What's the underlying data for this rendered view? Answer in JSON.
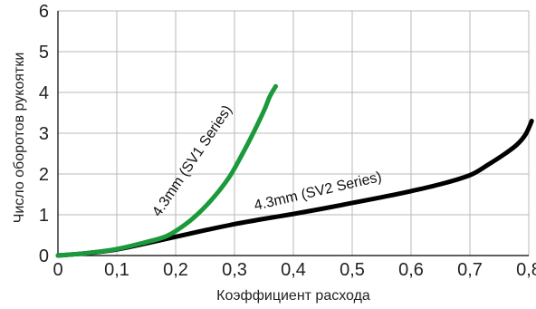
{
  "chart_data": {
    "type": "line",
    "title": "",
    "xlabel": "Коэффициент расхода",
    "ylabel": "Число оборотов рукоятки",
    "xlim": [
      0,
      0.8
    ],
    "ylim": [
      0,
      6
    ],
    "x_ticks": [
      0,
      0.1,
      0.2,
      0.3,
      0.4,
      0.5,
      0.6,
      0.7,
      0.8
    ],
    "x_tick_labels": [
      "0",
      "0,1",
      "0,2",
      "0,3",
      "0,4",
      "0,5",
      "0,6",
      "0,7",
      "0,8"
    ],
    "y_ticks": [
      0,
      1,
      2,
      3,
      4,
      5,
      6
    ],
    "y_tick_labels": [
      "0",
      "1",
      "2",
      "3",
      "4",
      "5",
      "6"
    ],
    "grid": true,
    "colors": {
      "sv1": "#1a9a3a",
      "sv2": "#000000",
      "grid": "#b8b8b8",
      "axes": "#000000",
      "ticks": "#222222"
    },
    "series": [
      {
        "key": "sv1",
        "label": "4.3mm (SV1 Series)",
        "x": [
          0,
          0.05,
          0.1,
          0.15,
          0.18,
          0.2,
          0.23,
          0.26,
          0.29,
          0.31,
          0.33,
          0.35,
          0.36,
          0.37
        ],
        "y": [
          0,
          0.06,
          0.16,
          0.33,
          0.45,
          0.6,
          0.92,
          1.35,
          1.9,
          2.4,
          2.95,
          3.55,
          3.9,
          4.15
        ]
      },
      {
        "key": "sv2",
        "label": "4.3mm (SV2 Series)",
        "x": [
          0,
          0.05,
          0.1,
          0.15,
          0.2,
          0.25,
          0.3,
          0.35,
          0.4,
          0.45,
          0.5,
          0.55,
          0.6,
          0.65,
          0.7,
          0.73,
          0.76,
          0.78,
          0.795,
          0.805
        ],
        "y": [
          0,
          0.06,
          0.15,
          0.3,
          0.46,
          0.62,
          0.77,
          0.9,
          1.02,
          1.15,
          1.29,
          1.43,
          1.58,
          1.75,
          1.97,
          2.22,
          2.5,
          2.72,
          2.98,
          3.3
        ]
      }
    ]
  }
}
